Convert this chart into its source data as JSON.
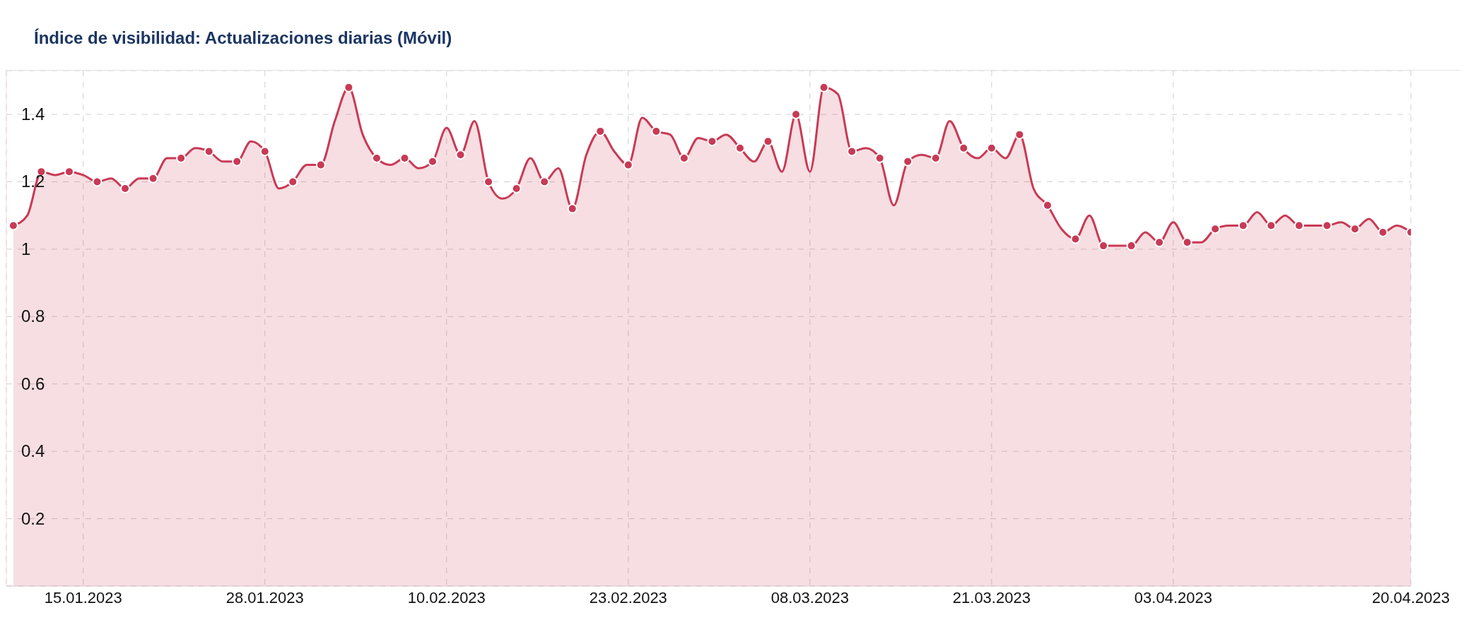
{
  "chart_data": {
    "type": "area",
    "title": "Índice de visibilidad: Actualizaciones diarias (Móvil)",
    "x": [
      "2023-01-10",
      "2023-01-11",
      "2023-01-12",
      "2023-01-13",
      "2023-01-14",
      "2023-01-15",
      "2023-01-16",
      "2023-01-17",
      "2023-01-18",
      "2023-01-19",
      "2023-01-20",
      "2023-01-21",
      "2023-01-22",
      "2023-01-23",
      "2023-01-24",
      "2023-01-25",
      "2023-01-26",
      "2023-01-27",
      "2023-01-28",
      "2023-01-29",
      "2023-01-30",
      "2023-01-31",
      "2023-02-01",
      "2023-02-02",
      "2023-02-03",
      "2023-02-04",
      "2023-02-05",
      "2023-02-06",
      "2023-02-07",
      "2023-02-08",
      "2023-02-09",
      "2023-02-10",
      "2023-02-11",
      "2023-02-12",
      "2023-02-13",
      "2023-02-14",
      "2023-02-15",
      "2023-02-16",
      "2023-02-17",
      "2023-02-18",
      "2023-02-19",
      "2023-02-20",
      "2023-02-21",
      "2023-02-22",
      "2023-02-23",
      "2023-02-24",
      "2023-02-25",
      "2023-02-26",
      "2023-02-27",
      "2023-02-28",
      "2023-03-01",
      "2023-03-02",
      "2023-03-03",
      "2023-03-04",
      "2023-03-05",
      "2023-03-06",
      "2023-03-07",
      "2023-03-08",
      "2023-03-09",
      "2023-03-10",
      "2023-03-11",
      "2023-03-12",
      "2023-03-13",
      "2023-03-14",
      "2023-03-15",
      "2023-03-16",
      "2023-03-17",
      "2023-03-18",
      "2023-03-19",
      "2023-03-20",
      "2023-03-21",
      "2023-03-22",
      "2023-03-23",
      "2023-03-24",
      "2023-03-25",
      "2023-03-26",
      "2023-03-27",
      "2023-03-28",
      "2023-03-29",
      "2023-03-30",
      "2023-03-31",
      "2023-04-01",
      "2023-04-02",
      "2023-04-03",
      "2023-04-04",
      "2023-04-05",
      "2023-04-06",
      "2023-04-07",
      "2023-04-08",
      "2023-04-09",
      "2023-04-10",
      "2023-04-11",
      "2023-04-12",
      "2023-04-13",
      "2023-04-14",
      "2023-04-15",
      "2023-04-16",
      "2023-04-17",
      "2023-04-18",
      "2023-04-19",
      "2023-04-20"
    ],
    "values": [
      1.07,
      1.1,
      1.23,
      1.22,
      1.23,
      1.22,
      1.2,
      1.21,
      1.18,
      1.21,
      1.21,
      1.27,
      1.27,
      1.3,
      1.29,
      1.26,
      1.26,
      1.32,
      1.29,
      1.18,
      1.2,
      1.25,
      1.25,
      1.38,
      1.48,
      1.34,
      1.27,
      1.25,
      1.27,
      1.24,
      1.26,
      1.36,
      1.28,
      1.38,
      1.2,
      1.15,
      1.18,
      1.27,
      1.2,
      1.24,
      1.12,
      1.28,
      1.35,
      1.29,
      1.25,
      1.39,
      1.35,
      1.34,
      1.27,
      1.33,
      1.32,
      1.34,
      1.3,
      1.26,
      1.32,
      1.23,
      1.4,
      1.23,
      1.48,
      1.46,
      1.29,
      1.3,
      1.27,
      1.13,
      1.26,
      1.28,
      1.27,
      1.38,
      1.3,
      1.27,
      1.3,
      1.27,
      1.34,
      1.18,
      1.13,
      1.06,
      1.03,
      1.1,
      1.01,
      1.01,
      1.01,
      1.05,
      1.02,
      1.08,
      1.02,
      1.02,
      1.06,
      1.07,
      1.07,
      1.11,
      1.07,
      1.1,
      1.07,
      1.07,
      1.07,
      1.08,
      1.06,
      1.09,
      1.05,
      1.07,
      1.05
    ],
    "color": "#c83a55",
    "xlim": [
      "2023-01-09T12:00",
      "2023-04-20"
    ],
    "xticks": [
      {
        "value": "2023-01-15",
        "label": "15.01.2023"
      },
      {
        "value": "2023-01-28",
        "label": "28.01.2023"
      },
      {
        "value": "2023-02-10",
        "label": "10.02.2023"
      },
      {
        "value": "2023-02-23",
        "label": "23.02.2023"
      },
      {
        "value": "2023-03-08",
        "label": "08.03.2023"
      },
      {
        "value": "2023-03-21",
        "label": "21.03.2023"
      },
      {
        "value": "2023-04-03",
        "label": "03.04.2023"
      },
      {
        "value": "2023-04-20",
        "label": "20.04.2023"
      }
    ],
    "ylim": [
      0,
      1.53
    ],
    "yticks": [
      0.2,
      0.4,
      0.6,
      0.8,
      1,
      1.2,
      1.4
    ],
    "grid": true,
    "marker": "circle",
    "line_style": "solid"
  }
}
